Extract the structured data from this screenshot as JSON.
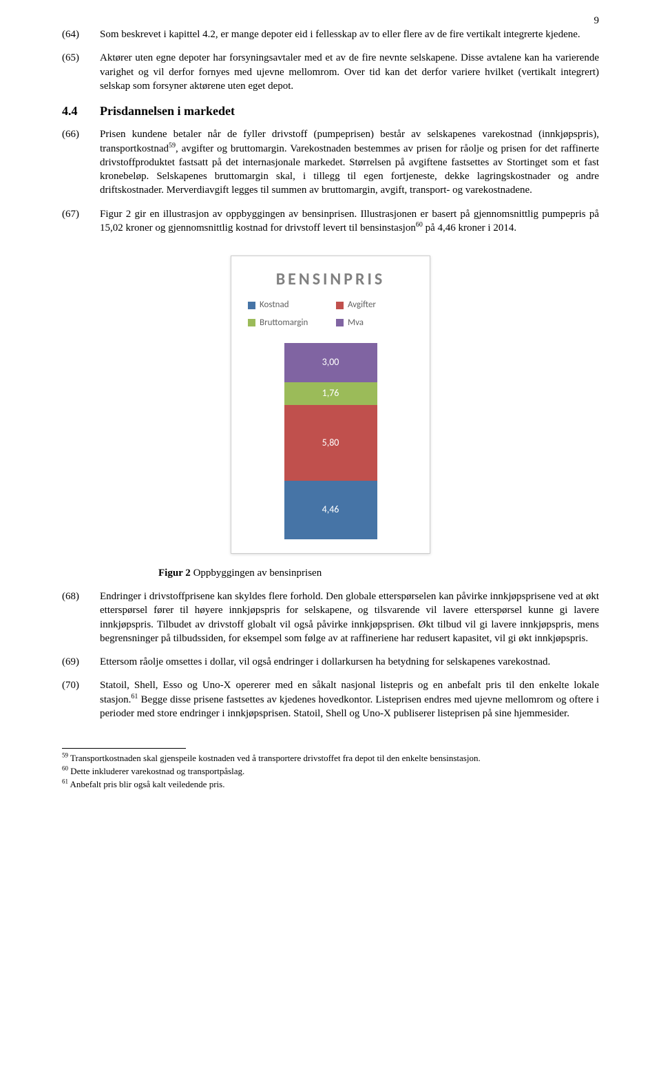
{
  "pageNumber": "9",
  "paras": {
    "p64": {
      "num": "(64)",
      "text": "Som beskrevet i kapittel 4.2, er mange depoter eid i fellesskap av to eller flere av de fire vertikalt integrerte kjedene."
    },
    "p65": {
      "num": "(65)",
      "text": "Aktører uten egne depoter har forsyningsavtaler med et av de fire nevnte selskapene. Disse avtalene kan ha varierende varighet og vil derfor fornyes med ujevne mellomrom. Over tid kan det derfor variere hvilket (vertikalt integrert) selskap som forsyner aktørene uten eget depot."
    },
    "heading44": {
      "num": "4.4",
      "text": "Prisdannelsen i markedet"
    },
    "p66": {
      "num": "(66)"
    },
    "p67": {
      "num": "(67)"
    },
    "p68": {
      "num": "(68)",
      "text": "Endringer i drivstoffprisene kan skyldes flere forhold. Den globale etterspørselen kan påvirke innkjøpsprisene ved at økt etterspørsel fører til høyere innkjøpspris for selskapene, og tilsvarende vil lavere etterspørsel kunne gi lavere innkjøpspris. Tilbudet av drivstoff globalt vil også påvirke innkjøpsprisen. Økt tilbud vil gi lavere innkjøpspris, mens begrensninger på tilbudssiden, for eksempel som følge av at raffineriene har redusert kapasitet, vil gi økt innkjøpspris."
    },
    "p69": {
      "num": "(69)",
      "text": "Ettersom råolje omsettes i dollar, vil også endringer i dollarkursen ha betydning for selskapenes varekostnad."
    },
    "p70": {
      "num": "(70)"
    }
  },
  "chart": {
    "title": "BENSINPRIS",
    "legend": [
      {
        "label": "Kostnad",
        "color": "#4674a6"
      },
      {
        "label": "Avgifter",
        "color": "#c0504d"
      },
      {
        "label": "Bruttomargin",
        "color": "#9bbb59"
      },
      {
        "label": "Mva",
        "color": "#8064a2"
      }
    ],
    "segments": [
      {
        "label": "3,00",
        "value": 3.0,
        "color": "#8064a2"
      },
      {
        "label": "1,76",
        "value": 1.76,
        "color": "#9bbb59"
      },
      {
        "label": "5,80",
        "value": 5.8,
        "color": "#c0504d"
      },
      {
        "label": "4,46",
        "value": 4.46,
        "color": "#4674a6"
      }
    ],
    "pxPerUnit": 19,
    "caption": {
      "bold": "Figur 2",
      "rest": " Oppbyggingen av bensinprisen"
    }
  },
  "footnotes": {
    "f59": "Transportkostnaden skal gjenspeile kostnaden ved å transportere drivstoffet fra depot til den enkelte bensinstasjon.",
    "f60": "Dette inkluderer varekostnad og transportpåslag.",
    "f61": "Anbefalt pris blir også kalt veiledende pris."
  }
}
